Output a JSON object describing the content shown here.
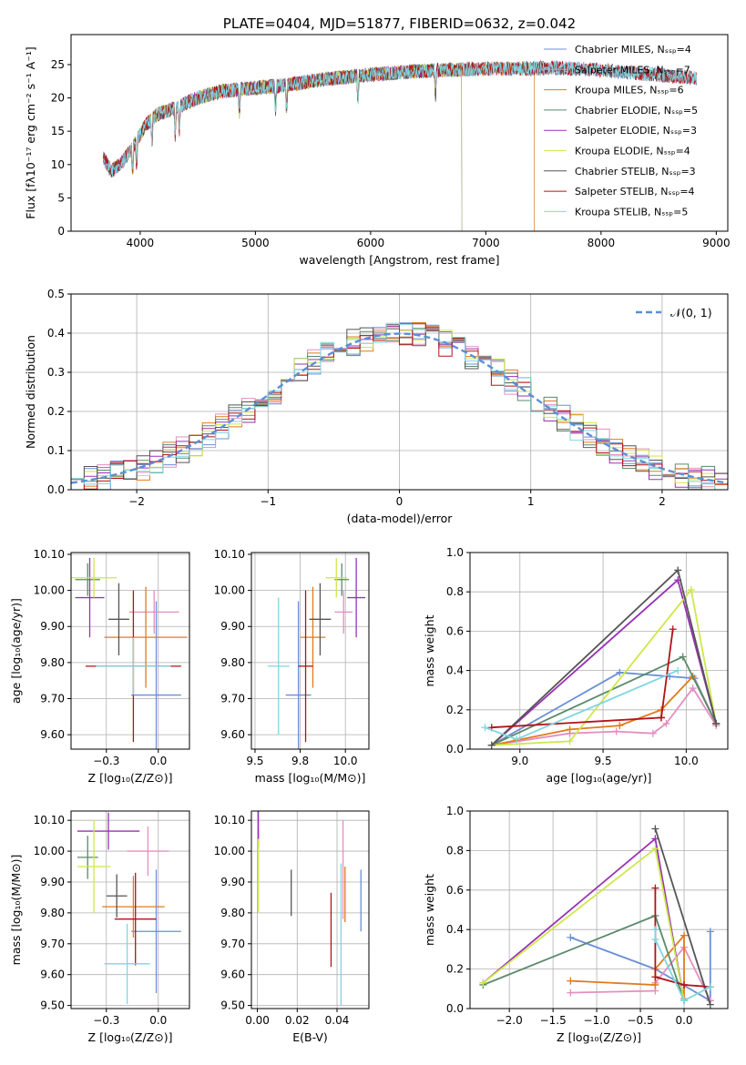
{
  "colors": {
    "chabrier_miles": "#6a8fd8",
    "salpeter_miles": "#e38fbf",
    "kroupa_miles": "#e07b1e",
    "chabrier_elodie": "#5a8a6a",
    "salpeter_elodie": "#9932b5",
    "kroupa_elodie": "#cde84a",
    "chabrier_stelib": "#555555",
    "salpeter_stelib": "#b31217",
    "kroupa_stelib": "#7fd6e0",
    "normal_curve": "#5b8fd6"
  },
  "chart_data": [
    {
      "id": "spectrum",
      "type": "line",
      "title": "PLATE=0404, MJD=51877, FIBERID=0632, z=0.042",
      "xlabel": "wavelength [Angstrom, rest frame]",
      "ylabel": "Flux [fλ10⁻¹⁷ erg cm⁻² s⁻¹ A⁻¹]",
      "xlim": [
        3400,
        9100
      ],
      "ylim": [
        0,
        29.5
      ],
      "xticks": [
        4000,
        5000,
        6000,
        7000,
        8000,
        9000
      ],
      "yticks": [
        0,
        5,
        10,
        15,
        20,
        25
      ],
      "legend_position": "top-right",
      "series": [
        {
          "name": "Chabrier MILES, N_SSP=4",
          "color_key": "chabrier_miles",
          "x_range": [
            3680,
            8830
          ]
        },
        {
          "name": "Salpeter MILES, N_SSP=7",
          "color_key": "salpeter_miles",
          "x_range": [
            3680,
            8830
          ]
        },
        {
          "name": "Kroupa MILES, N_SSP=6",
          "color_key": "kroupa_miles",
          "x_range": [
            3680,
            7420
          ]
        },
        {
          "name": "Chabrier ELODIE, N_SSP=5",
          "color_key": "chabrier_elodie",
          "x_range": [
            3680,
            6790
          ]
        },
        {
          "name": "Salpeter ELODIE, N_SSP=3",
          "color_key": "salpeter_elodie",
          "x_range": [
            3680,
            6790
          ]
        },
        {
          "name": "Kroupa ELODIE, N_SSP=4",
          "color_key": "kroupa_elodie",
          "x_range": [
            3880,
            6790
          ]
        },
        {
          "name": "Chabrier STELIB, N_SSP=3",
          "color_key": "chabrier_stelib",
          "x_range": [
            3680,
            8830
          ]
        },
        {
          "name": "Salpeter STELIB, N_SSP=4",
          "color_key": "salpeter_stelib",
          "x_range": [
            3680,
            8830
          ]
        },
        {
          "name": "Kroupa STELIB, N_SSP=5",
          "color_key": "kroupa_stelib",
          "x_range": [
            3680,
            8830
          ]
        }
      ],
      "continuum": [
        [
          3680,
          11
        ],
        [
          3750,
          9
        ],
        [
          3850,
          10.5
        ],
        [
          3950,
          13
        ],
        [
          4050,
          16
        ],
        [
          4150,
          17.5
        ],
        [
          4300,
          18.5
        ],
        [
          4500,
          20
        ],
        [
          4700,
          21
        ],
        [
          5000,
          21.5
        ],
        [
          5300,
          22
        ],
        [
          5600,
          22.8
        ],
        [
          6000,
          23.5
        ],
        [
          6400,
          24
        ],
        [
          6800,
          24.3
        ],
        [
          7200,
          24.4
        ],
        [
          7600,
          24.5
        ],
        [
          8000,
          24.2
        ],
        [
          8400,
          23.6
        ],
        [
          8830,
          23
        ]
      ]
    },
    {
      "id": "residuals",
      "type": "line",
      "xlabel": "(data-model)/error",
      "ylabel": "Normed distribution",
      "xlim": [
        -2.5,
        2.5
      ],
      "ylim": [
        0,
        0.5
      ],
      "xticks": [
        -2,
        -1,
        0,
        1,
        2
      ],
      "yticks": [
        0.0,
        0.1,
        0.2,
        0.3,
        0.4,
        0.5
      ],
      "legend_position": "top-right",
      "legend_label": "𝒩(0, 1)",
      "bins": {
        "start": -2.5,
        "width": 0.1,
        "count": 50
      }
    },
    {
      "id": "age_vs_Z",
      "type": "scatter",
      "xlabel": "Z [log₁₀(Z/Z⊙)]",
      "ylabel": "age  [log₁₀(age/yr)]",
      "xlim": [
        -0.42,
        0.15
      ],
      "ylim": [
        9.56,
        10.105
      ],
      "xticks": [
        -0.25,
        0.0
      ],
      "yticks": [
        9.6,
        9.7,
        9.8,
        9.9,
        10.0,
        10.1
      ],
      "points": [
        {
          "color_key": "chabrier_miles",
          "x": -0.01,
          "y": 9.71,
          "xerr": 0.12,
          "yerr": 0.26
        },
        {
          "color_key": "salpeter_miles",
          "x": -0.02,
          "y": 9.94,
          "xerr": 0.12,
          "yerr": 0.06
        },
        {
          "color_key": "kroupa_miles",
          "x": -0.06,
          "y": 9.87,
          "xerr": 0.2,
          "yerr": 0.14
        },
        {
          "color_key": "chabrier_elodie",
          "x": -0.34,
          "y": 10.03,
          "xerr": 0.06,
          "yerr": 0.045
        },
        {
          "color_key": "salpeter_elodie",
          "x": -0.33,
          "y": 9.98,
          "xerr": 0.07,
          "yerr": 0.11
        },
        {
          "color_key": "kroupa_elodie",
          "x": -0.31,
          "y": 10.035,
          "xerr": 0.11,
          "yerr": 0.055
        },
        {
          "color_key": "chabrier_stelib",
          "x": -0.19,
          "y": 9.92,
          "xerr": 0.05,
          "yerr": 0.1
        },
        {
          "color_key": "salpeter_stelib",
          "x": -0.12,
          "y": 9.79,
          "xerr": 0.23,
          "yerr": 0.21
        },
        {
          "color_key": "kroupa_stelib",
          "x": -0.12,
          "y": 9.79,
          "xerr": 0.18,
          "yerr": 0.08
        }
      ]
    },
    {
      "id": "age_vs_mass",
      "type": "scatter",
      "xlabel": "mass [log₁₀(M/M⊙)]",
      "xlim": [
        9.48,
        10.13
      ],
      "ylim": [
        9.56,
        10.105
      ],
      "xticks": [
        9.5,
        9.75,
        10.0
      ],
      "yticks": [
        9.6,
        9.7,
        9.8,
        9.9,
        10.0,
        10.1
      ],
      "points": [
        {
          "color_key": "chabrier_miles",
          "x": 9.74,
          "y": 9.71,
          "xerr": 0.07,
          "yerr": 0.26
        },
        {
          "color_key": "salpeter_miles",
          "x": 9.99,
          "y": 9.94,
          "xerr": 0.05,
          "yerr": 0.06
        },
        {
          "color_key": "kroupa_miles",
          "x": 9.82,
          "y": 9.87,
          "xerr": 0.07,
          "yerr": 0.14
        },
        {
          "color_key": "chabrier_elodie",
          "x": 9.98,
          "y": 10.03,
          "xerr": 0.04,
          "yerr": 0.045
        },
        {
          "color_key": "salpeter_elodie",
          "x": 10.06,
          "y": 9.98,
          "xerr": 0.05,
          "yerr": 0.11
        },
        {
          "color_key": "kroupa_elodie",
          "x": 9.95,
          "y": 10.035,
          "xerr": 0.06,
          "yerr": 0.055
        },
        {
          "color_key": "chabrier_stelib",
          "x": 9.86,
          "y": 9.92,
          "xerr": 0.06,
          "yerr": 0.1
        },
        {
          "color_key": "salpeter_stelib",
          "x": 9.78,
          "y": 9.79,
          "xerr": 0.04,
          "yerr": 0.21
        },
        {
          "color_key": "kroupa_stelib",
          "x": 9.63,
          "y": 9.79,
          "xerr": 0.06,
          "yerr": 0.19
        }
      ]
    },
    {
      "id": "mass_weight_vs_age",
      "type": "line",
      "xlabel": "age  [log₁₀(age/yr)]",
      "ylabel": "mass weight",
      "xlim": [
        8.7,
        10.25
      ],
      "ylim": [
        0,
        1.0
      ],
      "xticks": [
        9.0,
        9.5,
        10.0
      ],
      "yticks": [
        0.0,
        0.2,
        0.4,
        0.6,
        0.8,
        1.0
      ],
      "series": [
        {
          "color_key": "chabrier_miles",
          "x": [
            8.83,
            9.6,
            9.9,
            10.05,
            10.18
          ],
          "y": [
            0.02,
            0.39,
            0.37,
            0.36,
            0.13
          ]
        },
        {
          "color_key": "salpeter_miles",
          "x": [
            8.83,
            9.3,
            9.58,
            9.8,
            9.88,
            10.04,
            10.18
          ],
          "y": [
            0.02,
            0.08,
            0.09,
            0.08,
            0.13,
            0.31,
            0.12
          ]
        },
        {
          "color_key": "kroupa_miles",
          "x": [
            8.83,
            9.3,
            9.6,
            9.85,
            10.04,
            10.18
          ],
          "y": [
            0.02,
            0.1,
            0.12,
            0.2,
            0.37,
            0.13
          ]
        },
        {
          "color_key": "chabrier_elodie",
          "x": [
            8.83,
            9.98,
            10.18
          ],
          "y": [
            0.02,
            0.47,
            0.13
          ]
        },
        {
          "color_key": "salpeter_elodie",
          "x": [
            8.83,
            9.95,
            10.18
          ],
          "y": [
            0.02,
            0.86,
            0.13
          ]
        },
        {
          "color_key": "kroupa_elodie",
          "x": [
            8.83,
            9.3,
            10.03,
            10.18
          ],
          "y": [
            0.02,
            0.04,
            0.81,
            0.13
          ]
        },
        {
          "color_key": "chabrier_stelib",
          "x": [
            8.83,
            9.95,
            10.18
          ],
          "y": [
            0.02,
            0.91,
            0.13
          ]
        },
        {
          "color_key": "salpeter_stelib",
          "x": [
            8.83,
            9.85,
            9.92,
            9.85
          ],
          "y": [
            0.11,
            0.16,
            0.61,
            0.16
          ]
        },
        {
          "color_key": "kroupa_stelib",
          "x": [
            8.79,
            8.98,
            9.95
          ],
          "y": [
            0.11,
            0.05,
            0.4
          ]
        }
      ]
    },
    {
      "id": "mass_vs_Z",
      "type": "scatter",
      "xlabel": "Z [log₁₀(Z/Z⊙)]",
      "ylabel": "mass [log₁₀(M/M⊙)]",
      "xlim": [
        -0.42,
        0.15
      ],
      "ylim": [
        9.49,
        10.13
      ],
      "xticks": [
        -0.25,
        0.0
      ],
      "yticks": [
        9.5,
        9.6,
        9.7,
        9.8,
        9.9,
        10.0,
        10.1
      ],
      "points": [
        {
          "color_key": "chabrier_miles",
          "x": -0.01,
          "y": 9.74,
          "xerr": 0.12,
          "yerr": 0.2
        },
        {
          "color_key": "salpeter_miles",
          "x": -0.05,
          "y": 10.0,
          "xerr": 0.1,
          "yerr": 0.08
        },
        {
          "color_key": "kroupa_miles",
          "x": -0.12,
          "y": 9.82,
          "xerr": 0.15,
          "yerr": 0.1
        },
        {
          "color_key": "chabrier_elodie",
          "x": -0.34,
          "y": 9.98,
          "xerr": 0.05,
          "yerr": 0.07
        },
        {
          "color_key": "salpeter_elodie",
          "x": -0.24,
          "y": 10.065,
          "xerr": 0.15,
          "yerr": 0.06
        },
        {
          "color_key": "kroupa_elodie",
          "x": -0.31,
          "y": 9.95,
          "xerr": 0.08,
          "yerr": 0.15
        },
        {
          "color_key": "chabrier_stelib",
          "x": -0.2,
          "y": 9.855,
          "xerr": 0.05,
          "yerr": 0.07
        },
        {
          "color_key": "salpeter_stelib",
          "x": -0.11,
          "y": 9.78,
          "xerr": 0.1,
          "yerr": 0.15
        },
        {
          "color_key": "kroupa_stelib",
          "x": -0.15,
          "y": 9.635,
          "xerr": 0.11,
          "yerr": 0.13
        }
      ]
    },
    {
      "id": "mass_vs_ebv",
      "type": "scatter",
      "xlabel": "E(B-V)",
      "xlim": [
        -0.003,
        0.056
      ],
      "ylim": [
        9.49,
        10.13
      ],
      "xticks": [
        0.0,
        0.02,
        0.04
      ],
      "yticks": [
        9.5,
        9.6,
        9.7,
        9.8,
        9.9,
        10.0,
        10.1
      ],
      "points": [
        {
          "color_key": "chabrier_miles",
          "x": 0.052,
          "y": 9.84,
          "xerr": 0,
          "yerr": 0.1
        },
        {
          "color_key": "salpeter_miles",
          "x": 0.043,
          "y": 9.94,
          "xerr": 0,
          "yerr": 0.16
        },
        {
          "color_key": "kroupa_miles",
          "x": 0.044,
          "y": 9.86,
          "xerr": 0,
          "yerr": 0.09
        },
        {
          "color_key": "chabrier_elodie",
          "x": 0.0005,
          "y": 10.04,
          "xerr": 0,
          "yerr": 0.03
        },
        {
          "color_key": "salpeter_elodie",
          "x": 0.0005,
          "y": 10.08,
          "xerr": 0,
          "yerr": 0.05
        },
        {
          "color_key": "kroupa_elodie",
          "x": 0.0005,
          "y": 9.92,
          "xerr": 0,
          "yerr": 0.12
        },
        {
          "color_key": "chabrier_stelib",
          "x": 0.017,
          "y": 9.865,
          "xerr": 0,
          "yerr": 0.075
        },
        {
          "color_key": "salpeter_stelib",
          "x": 0.037,
          "y": 9.745,
          "xerr": 0,
          "yerr": 0.12
        },
        {
          "color_key": "kroupa_stelib",
          "x": 0.042,
          "y": 9.73,
          "xerr": 0,
          "yerr": 0.23
        }
      ]
    },
    {
      "id": "mass_weight_vs_Z",
      "type": "line",
      "xlabel": "Z [log₁₀(Z/Z⊙)]",
      "ylabel": "mass weight",
      "xlim": [
        -2.45,
        0.5
      ],
      "ylim": [
        0,
        1.0
      ],
      "xticks": [
        -2.0,
        -1.5,
        -1.0,
        -0.5,
        0.0
      ],
      "yticks": [
        0.0,
        0.2,
        0.4,
        0.6,
        0.8,
        1.0
      ],
      "series": [
        {
          "color_key": "chabrier_miles",
          "x": [
            -1.3,
            -0.33,
            0.3,
            0.3
          ],
          "y": [
            0.36,
            0.2,
            0.04,
            0.39
          ]
        },
        {
          "color_key": "salpeter_miles",
          "x": [
            -1.3,
            -0.33,
            -0.33,
            0.0,
            0.3
          ],
          "y": [
            0.08,
            0.09,
            0.13,
            0.31,
            0.04
          ]
        },
        {
          "color_key": "kroupa_miles",
          "x": [
            -1.3,
            -0.33,
            -0.33,
            0.0,
            0.0
          ],
          "y": [
            0.14,
            0.12,
            0.2,
            0.37,
            0.05
          ]
        },
        {
          "color_key": "chabrier_elodie",
          "x": [
            -2.3,
            -0.33,
            0.0
          ],
          "y": [
            0.12,
            0.47,
            0.04
          ]
        },
        {
          "color_key": "salpeter_elodie",
          "x": [
            -2.3,
            -0.33,
            0.0
          ],
          "y": [
            0.13,
            0.86,
            0.04
          ]
        },
        {
          "color_key": "kroupa_elodie",
          "x": [
            -2.3,
            -0.33,
            0.0
          ],
          "y": [
            0.13,
            0.81,
            0.04
          ]
        },
        {
          "color_key": "chabrier_stelib",
          "x": [
            -0.33,
            0.3
          ],
          "y": [
            0.91,
            0.02
          ]
        },
        {
          "color_key": "salpeter_stelib",
          "x": [
            -0.33,
            -0.33,
            0.0,
            0.3
          ],
          "y": [
            0.61,
            0.16,
            0.12,
            0.11
          ]
        },
        {
          "color_key": "kroupa_stelib",
          "x": [
            -0.33,
            -0.33,
            0.0,
            0.3
          ],
          "y": [
            0.4,
            0.35,
            0.04,
            0.11
          ]
        }
      ]
    }
  ]
}
